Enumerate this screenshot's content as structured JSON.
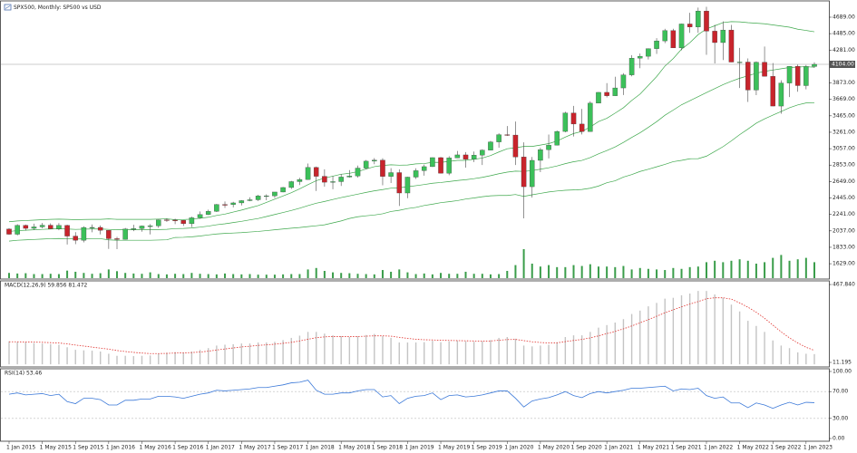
{
  "chart_data": [
    {
      "type": "candlestick",
      "title": "SPX500, Monthly:  SP500 vs USD",
      "categories": [
        "1 Jan 2015",
        null,
        null,
        null,
        "1 May 2015",
        null,
        null,
        null,
        "1 Sep 2015",
        null,
        null,
        null,
        "1 Jan 2016",
        null,
        null,
        null,
        "1 May 2016",
        null,
        null,
        null,
        "1 Sep 2016",
        null,
        null,
        null,
        "1 Jan 2017",
        null,
        null,
        null,
        "1 May 2017",
        null,
        null,
        null,
        "1 Sep 2017",
        null,
        null,
        null,
        "1 Jan 2018",
        null,
        null,
        null,
        "1 May 2018",
        null,
        null,
        null,
        "1 Sep 2018",
        null,
        null,
        null,
        "1 Jan 2019",
        null,
        null,
        null,
        "1 May 2019",
        null,
        null,
        null,
        "1 Sep 2019",
        null,
        null,
        null,
        "1 Jan 2020",
        null,
        null,
        null,
        "1 May 2020",
        null,
        null,
        null,
        "1 Sep 2020",
        null,
        null,
        null,
        "1 Jan 2021",
        null,
        null,
        null,
        "1 May 2021",
        null,
        null,
        null,
        "1 Sep 2021",
        null,
        null,
        null,
        "1 Jan 2022",
        null,
        null,
        null,
        "1 May 2022",
        null,
        null,
        null,
        "1 Sep 2022",
        null,
        null,
        null,
        "1 Jan 2023",
        null
      ],
      "open": [
        2059,
        1995,
        2105,
        2068,
        2086,
        2107,
        2063,
        2104,
        1972,
        1920,
        2079,
        2080,
        2044,
        1940,
        1932,
        2060,
        2065,
        2097,
        2099,
        2174,
        2171,
        2168,
        2126,
        2199,
        2239,
        2279,
        2364,
        2363,
        2384,
        2412,
        2423,
        2470,
        2472,
        2519,
        2575,
        2648,
        2674,
        2824,
        2714,
        2641,
        2648,
        2705,
        2718,
        2816,
        2902,
        2914,
        2712,
        2760,
        2507,
        2704,
        2784,
        2834,
        2946,
        2752,
        2942,
        2980,
        2926,
        2977,
        3038,
        3141,
        3231,
        3226,
        2954,
        2585,
        2912,
        3044,
        3100,
        3271,
        3500,
        3363,
        3270,
        3622,
        3756,
        3714,
        3811,
        3973,
        4181,
        4204,
        4298,
        4395,
        4523,
        4308,
        4605,
        4567,
        4766,
        4516,
        4374,
        4530,
        4132,
        4132,
        3785,
        4130,
        3955,
        3586,
        3872,
        4080,
        3840,
        4077
      ],
      "high": [
        2072,
        2119,
        2115,
        2126,
        2135,
        2130,
        2133,
        2113,
        2021,
        2094,
        2117,
        2104,
        2044,
        1963,
        2073,
        2112,
        2103,
        2121,
        2178,
        2194,
        2188,
        2169,
        2214,
        2278,
        2300,
        2371,
        2401,
        2398,
        2418,
        2454,
        2484,
        2491,
        2519,
        2582,
        2657,
        2695,
        2873,
        2835,
        2801,
        2718,
        2742,
        2791,
        2848,
        2916,
        2940,
        2939,
        2815,
        2800,
        2708,
        2813,
        2860,
        2949,
        2954,
        2964,
        3028,
        3014,
        3022,
        3050,
        3154,
        3248,
        3338,
        3394,
        3136,
        2954,
        3068,
        3233,
        3282,
        3515,
        3588,
        3550,
        3646,
        3760,
        3870,
        3950,
        3994,
        4218,
        4238,
        4302,
        4429,
        4545,
        4546,
        4608,
        4743,
        4808,
        4818,
        4595,
        4637,
        4593,
        4308,
        4177,
        4141,
        4325,
        4120,
        3906,
        4080,
        4101,
        4095,
        4130
      ],
      "low": [
        1988,
        1980,
        2040,
        2048,
        2068,
        2057,
        2045,
        1867,
        1872,
        1894,
        2019,
        1993,
        1812,
        1810,
        1931,
        2034,
        2026,
        1992,
        2074,
        2148,
        2120,
        2098,
        2084,
        2187,
        2233,
        2271,
        2322,
        2328,
        2352,
        2405,
        2407,
        2417,
        2446,
        2515,
        2557,
        2605,
        2670,
        2532,
        2586,
        2553,
        2594,
        2698,
        2698,
        2802,
        2864,
        2603,
        2631,
        2346,
        2443,
        2681,
        2722,
        2830,
        2750,
        2728,
        2940,
        2822,
        2891,
        2855,
        3036,
        3070,
        3215,
        2855,
        2192,
        2450,
        2766,
        2936,
        3098,
        3260,
        3209,
        3234,
        3268,
        3620,
        3694,
        3712,
        3723,
        3955,
        4056,
        4164,
        4233,
        4367,
        4306,
        4279,
        4495,
        4495,
        4222,
        4115,
        4157,
        4131,
        3810,
        3637,
        3722,
        3955,
        3584,
        3491,
        3698,
        3764,
        3794,
        4060
      ],
      "close": [
        1995,
        2105,
        2068,
        2086,
        2107,
        2063,
        2104,
        1972,
        1920,
        2079,
        2080,
        2044,
        1940,
        1932,
        2060,
        2065,
        2097,
        2099,
        2174,
        2171,
        2168,
        2126,
        2199,
        2239,
        2279,
        2364,
        2363,
        2384,
        2412,
        2423,
        2470,
        2472,
        2519,
        2575,
        2648,
        2674,
        2824,
        2714,
        2641,
        2648,
        2705,
        2718,
        2816,
        2902,
        2914,
        2712,
        2760,
        2507,
        2704,
        2784,
        2834,
        2946,
        2752,
        2942,
        2980,
        2926,
        2977,
        3038,
        3141,
        3231,
        3226,
        2954,
        2585,
        2912,
        3044,
        3100,
        3271,
        3500,
        3363,
        3270,
        3622,
        3756,
        3714,
        3811,
        3973,
        4181,
        4204,
        4298,
        4395,
        4523,
        4308,
        4605,
        4567,
        4766,
        4516,
        4374,
        4530,
        4132,
        4132,
        3785,
        4130,
        3955,
        3586,
        3872,
        4080,
        3840,
        4077,
        4104
      ],
      "up_color": "#3cc05a",
      "down_color": "#c8242c",
      "wick_color": "#4a4a4a",
      "volumes": [
        18,
        16,
        17,
        14,
        14,
        15,
        14,
        26,
        22,
        18,
        15,
        17,
        30,
        24,
        18,
        16,
        15,
        20,
        14,
        13,
        15,
        14,
        18,
        15,
        14,
        13,
        16,
        14,
        13,
        14,
        12,
        12,
        12,
        13,
        14,
        14,
        30,
        35,
        25,
        20,
        18,
        17,
        15,
        14,
        13,
        28,
        22,
        30,
        20,
        14,
        16,
        13,
        18,
        15,
        15,
        22,
        15,
        15,
        13,
        14,
        25,
        45,
        100,
        50,
        40,
        45,
        38,
        38,
        45,
        42,
        48,
        40,
        40,
        38,
        42,
        30,
        35,
        32,
        30,
        28,
        35,
        32,
        38,
        40,
        55,
        60,
        55,
        60,
        65,
        60,
        50,
        55,
        70,
        80,
        60,
        65,
        70,
        55
      ],
      "volume_color": "#3a9d4a",
      "volume_lim": [
        0,
        100
      ],
      "bands": {
        "color": "#3ea84c",
        "upper": [
          2150,
          2160,
          2165,
          2170,
          2175,
          2180,
          2182,
          2180,
          2175,
          2178,
          2180,
          2180,
          2185,
          2180,
          2180,
          2180,
          2180,
          2180,
          2183,
          2186,
          2175,
          2177,
          2183,
          2193,
          2206,
          2228,
          2245,
          2270,
          2295,
          2323,
          2350,
          2390,
          2430,
          2470,
          2510,
          2558,
          2610,
          2660,
          2692,
          2716,
          2740,
          2751,
          2772,
          2804,
          2834,
          2849,
          2857,
          2852,
          2854,
          2868,
          2872,
          2888,
          2887,
          2899,
          2912,
          2912,
          2925,
          2941,
          2972,
          3016,
          3056,
          3068,
          3085,
          3085,
          3102,
          3120,
          3152,
          3201,
          3245,
          3271,
          3326,
          3393,
          3434,
          3498,
          3565,
          3656,
          3734,
          3842,
          3952,
          4082,
          4176,
          4292,
          4372,
          4473,
          4544,
          4582,
          4622,
          4634,
          4631,
          4621,
          4614,
          4607,
          4593,
          4579,
          4565,
          4540,
          4525,
          4508
        ],
        "middle": [
          2030,
          2040,
          2045,
          2050,
          2055,
          2060,
          2062,
          2060,
          2055,
          2058,
          2060,
          2060,
          2055,
          2050,
          2050,
          2050,
          2050,
          2050,
          2053,
          2056,
          2065,
          2067,
          2073,
          2083,
          2096,
          2113,
          2125,
          2140,
          2155,
          2173,
          2190,
          2215,
          2240,
          2265,
          2290,
          2318,
          2350,
          2380,
          2402,
          2426,
          2450,
          2471,
          2492,
          2514,
          2534,
          2549,
          2567,
          2572,
          2584,
          2598,
          2612,
          2628,
          2637,
          2649,
          2662,
          2672,
          2685,
          2701,
          2722,
          2746,
          2766,
          2778,
          2775,
          2785,
          2802,
          2820,
          2842,
          2871,
          2895,
          2911,
          2946,
          2993,
          3034,
          3078,
          3135,
          3196,
          3254,
          3322,
          3392,
          3472,
          3536,
          3602,
          3652,
          3703,
          3754,
          3802,
          3852,
          3894,
          3931,
          3961,
          3994,
          4017,
          4033,
          4049,
          4065,
          4070,
          4075,
          4068
        ],
        "lower": [
          1910,
          1920,
          1925,
          1930,
          1935,
          1940,
          1942,
          1940,
          1935,
          1938,
          1940,
          1940,
          1925,
          1920,
          1920,
          1920,
          1920,
          1920,
          1923,
          1926,
          1955,
          1957,
          1963,
          1973,
          1986,
          1998,
          2005,
          2010,
          2015,
          2023,
          2030,
          2040,
          2050,
          2060,
          2070,
          2078,
          2090,
          2100,
          2112,
          2136,
          2160,
          2191,
          2212,
          2224,
          2234,
          2249,
          2277,
          2292,
          2314,
          2328,
          2352,
          2368,
          2387,
          2399,
          2412,
          2432,
          2445,
          2461,
          2472,
          2476,
          2476,
          2488,
          2465,
          2485,
          2502,
          2520,
          2532,
          2541,
          2545,
          2551,
          2566,
          2593,
          2634,
          2658,
          2705,
          2736,
          2774,
          2802,
          2832,
          2862,
          2896,
          2912,
          2932,
          2933,
          2964,
          3022,
          3082,
          3154,
          3231,
          3301,
          3374,
          3427,
          3473,
          3519,
          3565,
          3600,
          3625,
          3628
        ]
      },
      "last_price": {
        "value": 4104,
        "label": "4104.00"
      },
      "ylim": [
        1450,
        4880
      ],
      "yticks": [
        {
          "value": 1629,
          "label": "1629.00"
        },
        {
          "value": 1833,
          "label": "1833.00"
        },
        {
          "value": 2037,
          "label": "2037.00"
        },
        {
          "value": 2241,
          "label": "2241.00"
        },
        {
          "value": 2445,
          "label": "2445.00"
        },
        {
          "value": 2649,
          "label": "2649.00"
        },
        {
          "value": 2853,
          "label": "2853.00"
        },
        {
          "value": 3057,
          "label": "3057.00"
        },
        {
          "value": 3261,
          "label": "3261.00"
        },
        {
          "value": 3465,
          "label": "3465.00"
        },
        {
          "value": 3669,
          "label": "3669.00"
        },
        {
          "value": 3873,
          "label": "3873.00"
        },
        {
          "value": 4281,
          "label": "4281.00"
        },
        {
          "value": 4485,
          "label": "4485.00"
        },
        {
          "value": 4689,
          "label": "4689.00"
        }
      ],
      "grid": false
    },
    {
      "type": "bar",
      "title": "MACD(12,26,9) 59.856 81.472",
      "values": [
        135,
        130,
        128,
        125,
        122,
        118,
        115,
        100,
        85,
        82,
        80,
        75,
        62,
        50,
        50,
        48,
        50,
        52,
        62,
        68,
        72,
        70,
        75,
        85,
        95,
        110,
        115,
        118,
        122,
        122,
        128,
        128,
        132,
        142,
        155,
        168,
        190,
        190,
        180,
        170,
        165,
        160,
        165,
        172,
        178,
        165,
        155,
        128,
        128,
        128,
        130,
        138,
        130,
        135,
        138,
        135,
        132,
        135,
        142,
        155,
        160,
        150,
        110,
        105,
        110,
        115,
        130,
        160,
        170,
        170,
        190,
        215,
        230,
        245,
        265,
        295,
        315,
        340,
        360,
        385,
        390,
        405,
        415,
        430,
        430,
        410,
        390,
        350,
        310,
        255,
        225,
        190,
        140,
        110,
        95,
        70,
        62,
        59.856
      ],
      "color": "#c4c4c4",
      "signal": {
        "color": "#e0302c",
        "values": [
          132,
          132,
          131,
          130,
          129,
          127,
          125,
          120,
          113,
          107,
          101,
          95,
          89,
          81,
          75,
          70,
          66,
          63,
          63,
          64,
          66,
          67,
          69,
          72,
          77,
          84,
          90,
          96,
          102,
          106,
          111,
          114,
          118,
          123,
          129,
          137,
          147,
          156,
          161,
          163,
          163,
          163,
          163,
          165,
          167,
          167,
          165,
          158,
          152,
          147,
          144,
          143,
          141,
          140,
          139,
          138,
          137,
          136,
          137,
          141,
          145,
          146,
          139,
          132,
          128,
          125,
          126,
          133,
          140,
          146,
          155,
          167,
          180,
          193,
          208,
          225,
          243,
          262,
          282,
          302,
          320,
          337,
          353,
          368,
          385,
          390,
          390,
          382,
          360,
          335,
          305,
          270,
          230,
          190,
          155,
          125,
          100,
          81.472
        ]
      },
      "ylim": [
        -10,
        484
      ],
      "yticks": [
        {
          "value": 467.84,
          "label": "467.840"
        },
        11.195
      ],
      "grid": false
    },
    {
      "type": "line",
      "title": "RSI(14) 53.46",
      "values": [
        66,
        68,
        65,
        66,
        67,
        64,
        66,
        55,
        52,
        60,
        60,
        58,
        50,
        50,
        57,
        57,
        59,
        59,
        63,
        63,
        62,
        60,
        63,
        66,
        68,
        72,
        71,
        72,
        73,
        74,
        76,
        76,
        78,
        80,
        83,
        84,
        87,
        72,
        66,
        66,
        68,
        68,
        71,
        73,
        73,
        62,
        64,
        52,
        60,
        63,
        64,
        68,
        58,
        64,
        65,
        62,
        63,
        65,
        68,
        71,
        71,
        60,
        47,
        56,
        59,
        61,
        65,
        70,
        64,
        61,
        67,
        70,
        68,
        70,
        72,
        75,
        75,
        76,
        77,
        78,
        71,
        74,
        73,
        75,
        64,
        60,
        62,
        53,
        53,
        46,
        53,
        50,
        45,
        50,
        54,
        50,
        54,
        53.46
      ],
      "color": "#3a78d8",
      "ylim": [
        0,
        100
      ],
      "yticks": [
        {
          "value": 100,
          "label": "100.00"
        },
        {
          "value": 70,
          "label": "70.00"
        },
        {
          "value": 30,
          "label": "30.00"
        },
        {
          "value": 0,
          "label": "0.00"
        }
      ],
      "grid": true
    }
  ]
}
